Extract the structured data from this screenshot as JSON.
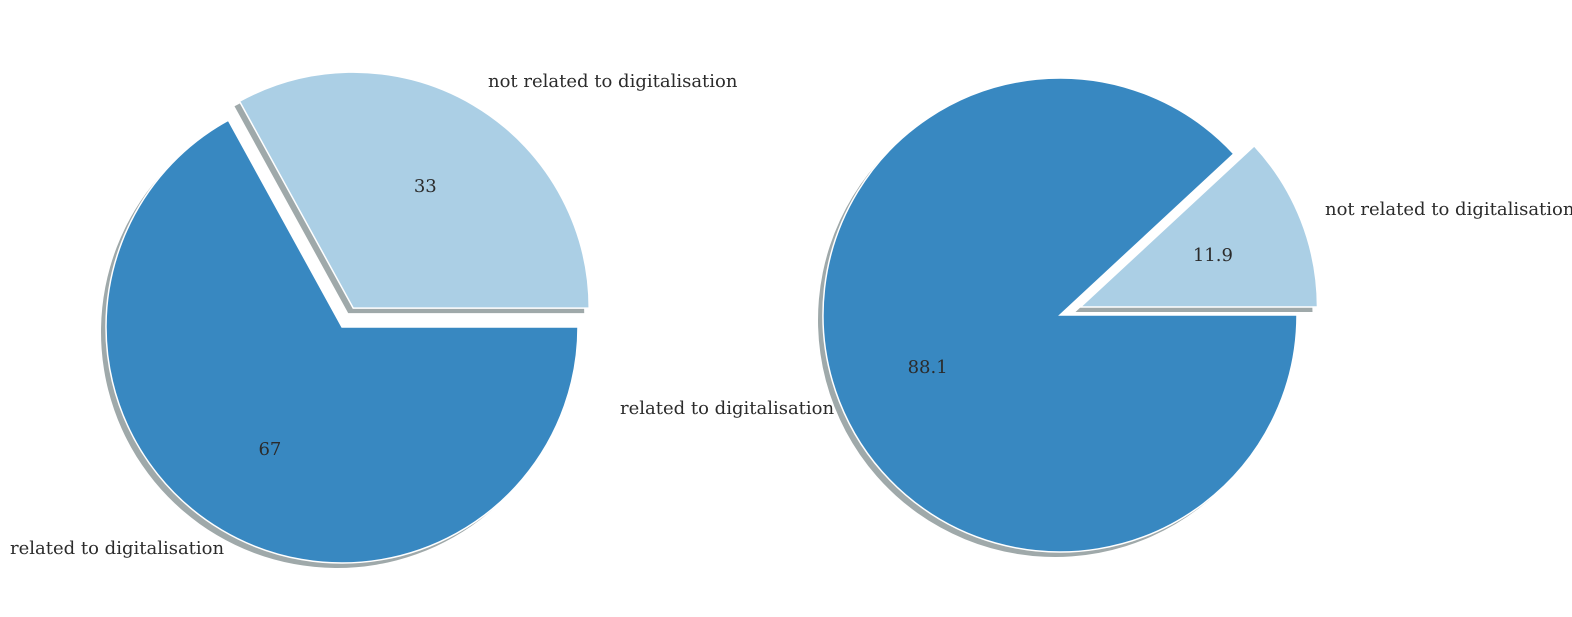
{
  "chart_data": [
    {
      "type": "pie",
      "slices": [
        {
          "label": "not related to digitalisation",
          "value": 33,
          "value_label": "33",
          "color": "#abcfe5",
          "exploded": true
        },
        {
          "label": "related to digitalisation",
          "value": 67,
          "value_label": "67",
          "color": "#3888c1",
          "exploded": false
        }
      ],
      "start_angle_deg": 0,
      "direction": "counterclockwise",
      "shadow": true
    },
    {
      "type": "pie",
      "slices": [
        {
          "label": "not related to digitalisation",
          "value": 11.9,
          "value_label": "11.9",
          "color": "#abcfe5",
          "exploded": true
        },
        {
          "label": "related to digitalisation",
          "value": 88.1,
          "value_label": "88.1",
          "color": "#3888c1",
          "exploded": false
        }
      ],
      "start_angle_deg": 0,
      "direction": "counterclockwise",
      "shadow": true
    }
  ]
}
